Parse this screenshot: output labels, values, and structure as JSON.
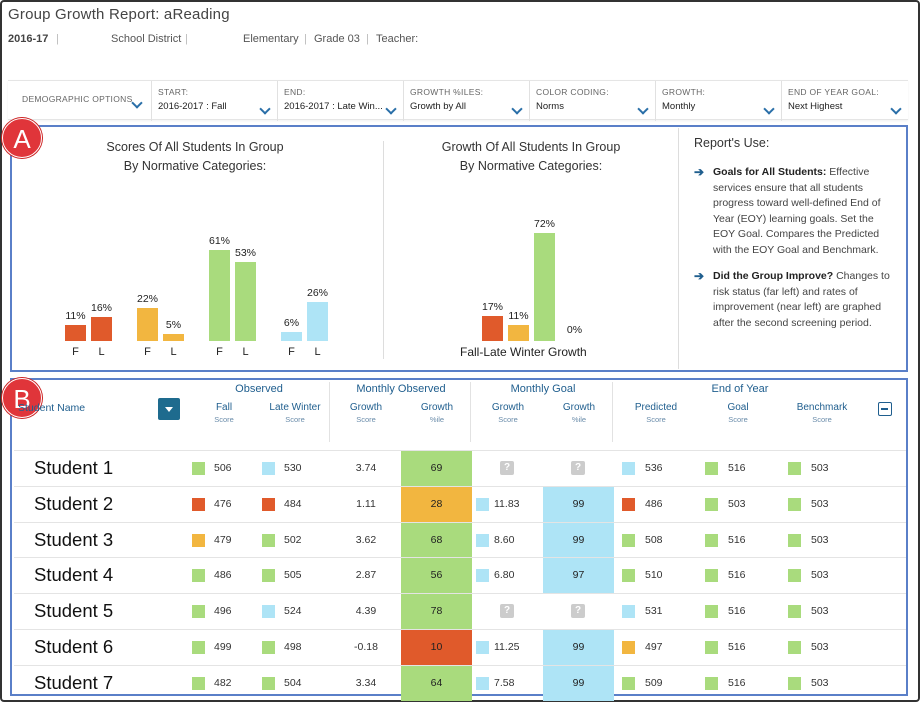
{
  "header": {
    "title": "Group Growth Report: aReading",
    "year": "2016-17",
    "district": "School District",
    "school": "Elementary",
    "grade": "Grade 03",
    "teacher": "Teacher:"
  },
  "filters": {
    "demographic": "DEMOGRAPHIC OPTIONS",
    "start_label": "START:",
    "start_value": "2016-2017 : Fall",
    "end_label": "END:",
    "end_value": "2016-2017 : Late Win...",
    "growth_pct_label": "GROWTH %ILES:",
    "growth_pct_value": "Growth by All",
    "color_label": "COLOR CODING:",
    "color_value": "Norms",
    "growth_label": "GROWTH:",
    "growth_value": "Monthly",
    "eoy_label": "END OF YEAR GOAL:",
    "eoy_value": "Next Highest"
  },
  "markers": {
    "a": "A",
    "b": "B"
  },
  "colors": {
    "red": "#e05a2b",
    "orange": "#f2b640",
    "green": "#a9db7d",
    "blue": "#aee4f6",
    "frame_blue": "#5a7fc8"
  },
  "scores_chart": {
    "title1": "Scores Of All Students In Group",
    "title2": "By Normative Categories:",
    "labels": [
      "11%",
      "16%",
      "22%",
      "5%",
      "61%",
      "53%",
      "6%",
      "26%"
    ],
    "axis": [
      "F",
      "L",
      "F",
      "L",
      "F",
      "L",
      "F",
      "L"
    ]
  },
  "growth_chart": {
    "title1": "Growth Of All Students In Group",
    "title2": "By Normative Categories:",
    "labels": [
      "17%",
      "11%",
      "72%",
      "0%"
    ],
    "caption": "Fall-Late Winter Growth"
  },
  "chart_data": [
    {
      "type": "bar",
      "title": "Scores Of All Students In Group By Normative Categories:",
      "categories": [
        "F",
        "L",
        "F",
        "L",
        "F",
        "L",
        "F",
        "L"
      ],
      "values": [
        11,
        16,
        22,
        5,
        61,
        53,
        6,
        26
      ],
      "bar_colors": [
        "#e05a2b",
        "#e05a2b",
        "#f2b640",
        "#f2b640",
        "#a9db7d",
        "#a9db7d",
        "#aee4f6",
        "#aee4f6"
      ]
    },
    {
      "type": "bar",
      "title": "Growth Of All Students In Group By Normative Categories:",
      "xlabel": "Fall-Late Winter Growth",
      "categories": [
        "",
        "",
        "",
        ""
      ],
      "values": [
        17,
        11,
        72,
        0
      ],
      "bar_colors": [
        "#e05a2b",
        "#f2b640",
        "#a9db7d",
        "#aee4f6"
      ]
    }
  ],
  "report_use": {
    "title": "Report's Use:",
    "item1_bold": "Goals for All Students:",
    "item1_text": " Effective services ensure that all students progress toward well-defined End of Year (EOY) learning goals. Set the EOY Goal. Compares the Predicted with the EOY Goal and Benchmark.",
    "item2_bold": "Did the Group Improve?",
    "item2_text": " Changes to risk status (far left) and rates of improvement (near left) are graphed after the second screening period."
  },
  "table": {
    "student_name_header": "Student Name",
    "groups": [
      "Observed",
      "Monthly Observed",
      "Monthly Goal",
      "End of Year"
    ],
    "columns": [
      {
        "label": "Fall",
        "sub": "Score"
      },
      {
        "label": "Late Winter",
        "sub": "Score"
      },
      {
        "label": "Growth",
        "sub": "Score"
      },
      {
        "label": "Growth",
        "sub": "%ile"
      },
      {
        "label": "Growth",
        "sub": "Score"
      },
      {
        "label": "Growth",
        "sub": "%ile"
      },
      {
        "label": "Predicted",
        "sub": "Score"
      },
      {
        "label": "Goal",
        "sub": "Score"
      },
      {
        "label": "Benchmark",
        "sub": "Score"
      }
    ],
    "rows": [
      {
        "name": "Student 1",
        "fall": "506",
        "fall_c": "green",
        "lw": "530",
        "lw_c": "blue",
        "gs": "3.74",
        "gp": "69",
        "gp_c": "green",
        "mgs": "",
        "mgs_c": "",
        "mgp": "",
        "mgp_c": "",
        "pred": "536",
        "pred_c": "blue",
        "goal": "516",
        "bench": "503"
      },
      {
        "name": "Student 2",
        "fall": "476",
        "fall_c": "red",
        "lw": "484",
        "lw_c": "red",
        "gs": "1.11",
        "gp": "28",
        "gp_c": "orange",
        "mgs": "11.83",
        "mgs_c": "blue",
        "mgp": "99",
        "mgp_c": "blue",
        "pred": "486",
        "pred_c": "red",
        "goal": "503",
        "bench": "503"
      },
      {
        "name": "Student 3",
        "fall": "479",
        "fall_c": "orange",
        "lw": "502",
        "lw_c": "green",
        "gs": "3.62",
        "gp": "68",
        "gp_c": "green",
        "mgs": "8.60",
        "mgs_c": "blue",
        "mgp": "99",
        "mgp_c": "blue",
        "pred": "508",
        "pred_c": "green",
        "goal": "516",
        "bench": "503"
      },
      {
        "name": "Student 4",
        "fall": "486",
        "fall_c": "green",
        "lw": "505",
        "lw_c": "green",
        "gs": "2.87",
        "gp": "56",
        "gp_c": "green",
        "mgs": "6.80",
        "mgs_c": "blue",
        "mgp": "97",
        "mgp_c": "blue",
        "pred": "510",
        "pred_c": "green",
        "goal": "516",
        "bench": "503"
      },
      {
        "name": "Student 5",
        "fall": "496",
        "fall_c": "green",
        "lw": "524",
        "lw_c": "blue",
        "gs": "4.39",
        "gp": "78",
        "gp_c": "green",
        "mgs": "",
        "mgs_c": "",
        "mgp": "",
        "mgp_c": "",
        "pred": "531",
        "pred_c": "blue",
        "goal": "516",
        "bench": "503"
      },
      {
        "name": "Student 6",
        "fall": "499",
        "fall_c": "green",
        "lw": "498",
        "lw_c": "green",
        "gs": "-0.18",
        "gp": "10",
        "gp_c": "red",
        "mgs": "11.25",
        "mgs_c": "blue",
        "mgp": "99",
        "mgp_c": "blue",
        "pred": "497",
        "pred_c": "orange",
        "goal": "516",
        "bench": "503"
      },
      {
        "name": "Student 7",
        "fall": "482",
        "fall_c": "green",
        "lw": "504",
        "lw_c": "green",
        "gs": "3.34",
        "gp": "64",
        "gp_c": "green",
        "mgs": "7.58",
        "mgs_c": "blue",
        "mgp": "99",
        "mgp_c": "blue",
        "pred": "509",
        "pred_c": "green",
        "goal": "516",
        "bench": "503"
      }
    ],
    "missing_icon": "?"
  }
}
